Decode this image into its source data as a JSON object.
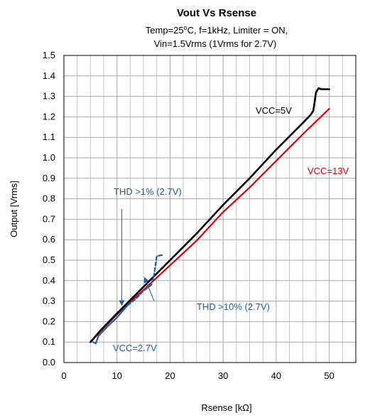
{
  "chart_data": {
    "type": "line",
    "title": "Vout Vs Rsense",
    "subtitle_line1_pre": "Temp=25",
    "subtitle_line1_deg": "o",
    "subtitle_line1_post": "C, f=1kHz, Limiter = ON,",
    "subtitle_line2": "Vin=1.5Vrms (1Vrms for 2.7V)",
    "xlabel": "Rsense [kΩ]",
    "ylabel": "Output [Vrms]",
    "xlim": [
      0,
      55
    ],
    "ylim": [
      0,
      1.5
    ],
    "x_ticks": [
      0,
      10,
      20,
      30,
      40,
      50
    ],
    "x_tick_labels": [
      "0",
      "10",
      "20",
      "30",
      "40",
      "50"
    ],
    "y_ticks": [
      0.0,
      0.1,
      0.2,
      0.3,
      0.4,
      0.5,
      0.6,
      0.7,
      0.8,
      0.9,
      1.0,
      1.1,
      1.2,
      1.3,
      1.4,
      1.5
    ],
    "y_tick_labels": [
      "0.0",
      "0.1",
      "0.2",
      "0.3",
      "0.4",
      "0.5",
      "0.6",
      "0.7",
      "0.8",
      "0.9",
      "1.0",
      "1.1",
      "1.2",
      "1.3",
      "1.4",
      "1.5"
    ],
    "grid": true,
    "series": [
      {
        "name": "VCC=5V",
        "color": "#000000",
        "style": "solid",
        "x": [
          5.0,
          7,
          10,
          15,
          20,
          25,
          30,
          35,
          40,
          45,
          46.5,
          47.0,
          47.5,
          48.0,
          48.5,
          50
        ],
        "y": [
          0.1,
          0.16,
          0.24,
          0.37,
          0.5,
          0.63,
          0.77,
          0.9,
          1.04,
          1.17,
          1.21,
          1.23,
          1.32,
          1.34,
          1.335,
          1.335
        ]
      },
      {
        "name": "VCC=13V",
        "color": "#e00000",
        "style": "solid",
        "x": [
          5.0,
          7,
          10,
          15,
          20,
          25,
          30,
          35,
          40,
          45,
          50
        ],
        "y": [
          0.1,
          0.155,
          0.235,
          0.355,
          0.475,
          0.595,
          0.735,
          0.855,
          0.985,
          1.115,
          1.24
        ]
      },
      {
        "name": "VCC=2.7V",
        "color": "#1a5fb4",
        "style": "solid",
        "x": [
          5.5,
          6.0,
          6.5,
          8,
          10,
          11,
          12
        ],
        "y": [
          0.1,
          0.093,
          0.13,
          0.17,
          0.22,
          0.25,
          0.28
        ]
      },
      {
        "name": "THD >10% (2.7V)",
        "color": "#1a5fb4",
        "style": "dashed",
        "x": [
          12,
          13.5,
          15,
          16.5,
          17,
          17.5,
          18.5
        ],
        "y": [
          0.28,
          0.31,
          0.35,
          0.38,
          0.43,
          0.52,
          0.525
        ]
      }
    ],
    "annotations": [
      {
        "text": "VCC=5V",
        "color": "#000000"
      },
      {
        "text": "VCC=13V",
        "color": "#e00000"
      },
      {
        "text": "VCC=2.7V",
        "color": "#1a5fb4"
      },
      {
        "text": "THD >1% (2.7V)",
        "color": "#1a5fb4"
      },
      {
        "text": "THD >10% (2.7V)",
        "color": "#1a5fb4"
      }
    ],
    "arrows": [
      {
        "label": "THD >1% (2.7V)",
        "from": [
          10.9,
          0.75
        ],
        "to": [
          10.9,
          0.28
        ]
      },
      {
        "label": "THD >10% (2.7V)",
        "from": [
          17.0,
          0.3
        ],
        "to": [
          15.2,
          0.415
        ]
      }
    ]
  }
}
